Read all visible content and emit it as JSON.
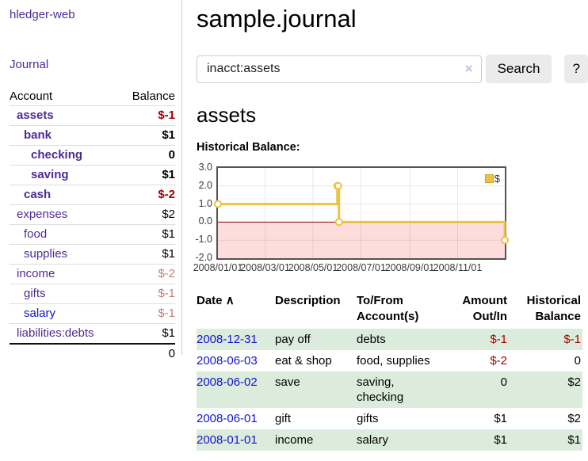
{
  "app": {
    "brand": "hledger-web"
  },
  "sidebar": {
    "journal_link": "Journal",
    "accounts": {
      "col_account": "Account",
      "col_balance": "Balance",
      "rows": [
        {
          "name": "assets",
          "balance": "$-1"
        },
        {
          "name": "bank",
          "balance": "$1"
        },
        {
          "name": "checking",
          "balance": "0"
        },
        {
          "name": "saving",
          "balance": "$1"
        },
        {
          "name": "cash",
          "balance": "$-2"
        },
        {
          "name": "expenses",
          "balance": "$2"
        },
        {
          "name": "food",
          "balance": "$1"
        },
        {
          "name": "supplies",
          "balance": "$1"
        },
        {
          "name": "income",
          "balance": "$-2"
        },
        {
          "name": "gifts",
          "balance": "$-1"
        },
        {
          "name": "salary",
          "balance": "$-1"
        },
        {
          "name": "liabilities:debts",
          "balance": "$1"
        }
      ],
      "total": "0"
    }
  },
  "main": {
    "title": "sample.journal",
    "search": {
      "value": "inacct:assets",
      "clear_icon": "×",
      "search_button": "Search",
      "help_button": "?"
    },
    "account_heading": "assets",
    "chart_label": "Historical Balance:",
    "register": {
      "headers": {
        "date": "Date",
        "sort_icon": "∧",
        "description": "Description",
        "tofrom": "To/From Account(s)",
        "amount": "Amount Out/In",
        "balance": "Historical Balance"
      },
      "rows": [
        {
          "date": "2008-12-31",
          "description": "pay off",
          "accounts": "debts",
          "amount": "$-1",
          "balance": "$-1"
        },
        {
          "date": "2008-06-03",
          "description": "eat & shop",
          "accounts": "food, supplies",
          "amount": "$-2",
          "balance": "0"
        },
        {
          "date": "2008-06-02",
          "description": "save",
          "accounts": "saving, checking",
          "amount": "0",
          "balance": "$2"
        },
        {
          "date": "2008-06-01",
          "description": "gift",
          "accounts": "gifts",
          "amount": "$1",
          "balance": "$2"
        },
        {
          "date": "2008-01-01",
          "description": "income",
          "accounts": "salary",
          "amount": "$1",
          "balance": "$1"
        }
      ]
    }
  },
  "chart_data": {
    "type": "line",
    "title": "Historical Balance",
    "step": true,
    "legend": "$",
    "legend_position": "top-right",
    "grid": true,
    "ylim": [
      -2,
      3
    ],
    "yticks": [
      "3.0",
      "2.0",
      "1.0",
      "0.0",
      "-1.0",
      "-2.0"
    ],
    "xticks": [
      "2008/01/01",
      "2008/03/01",
      "2008/05/01",
      "2008/07/01",
      "2008/09/01",
      "2008/11/01"
    ],
    "xtick_days": [
      0,
      60,
      121,
      182,
      244,
      305
    ],
    "x_range_days": 365,
    "series": [
      {
        "name": "$",
        "color": "#edc240",
        "points": [
          {
            "x": "2008-01-01",
            "y": 1
          },
          {
            "x": "2008-06-01",
            "y": 2
          },
          {
            "x": "2008-06-02",
            "y": 2
          },
          {
            "x": "2008-06-03",
            "y": 0
          },
          {
            "x": "2008-12-31",
            "y": -1
          }
        ],
        "point_days": [
          0,
          152,
          153,
          154,
          365
        ]
      }
    ],
    "negative_region_color": "#ffdcdc",
    "zero_line_color": "#8b0000",
    "gridline_color": "rgba(0,0,0,0.09)"
  },
  "colors": {
    "accent_purple": "#4f2a93",
    "link_blue": "#1414c8",
    "negative_dark": "#a40000",
    "negative_light": "#c27c7c",
    "stripe_green": "#dcecdc",
    "series_gold": "#edc240"
  }
}
